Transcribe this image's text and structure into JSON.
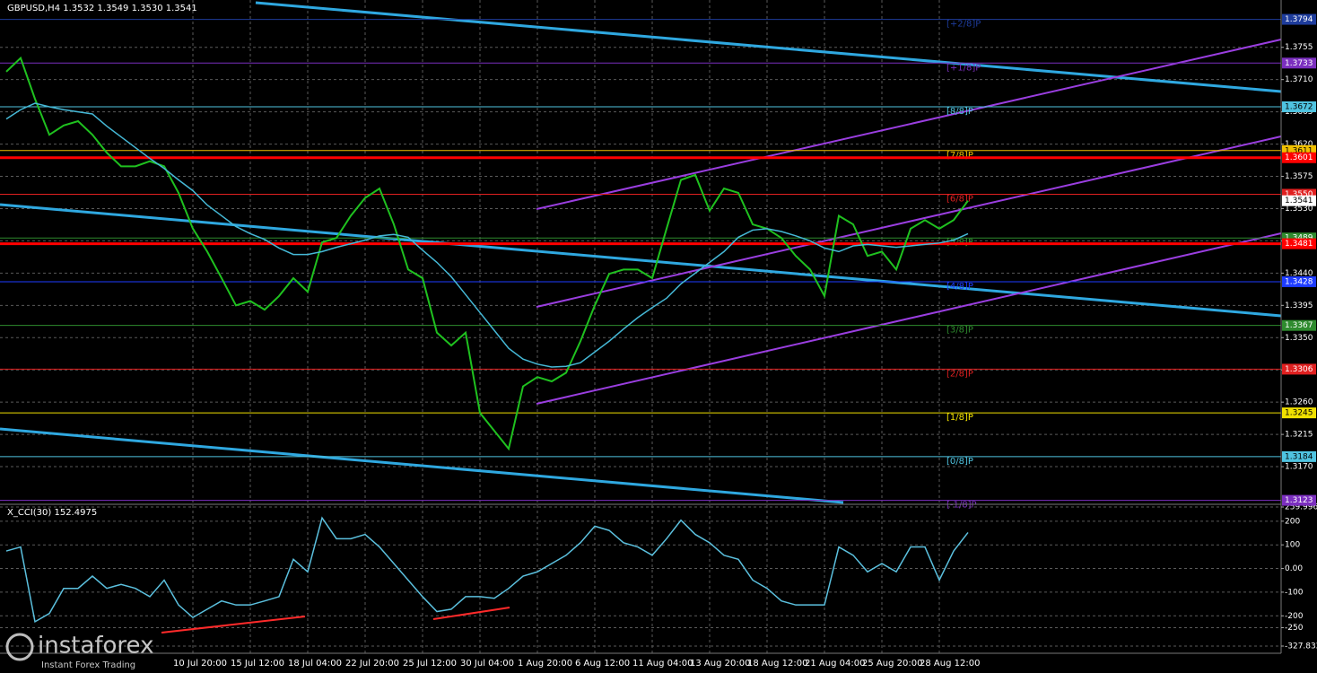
{
  "chart_data": [
    {
      "type": "line",
      "title": "GBPUSD,H4  1.3532 1.3549 1.3530 1.3541",
      "categories": [
        null,
        null,
        null,
        null,
        null,
        null,
        null,
        null,
        null,
        null,
        null,
        null,
        null,
        "10 Jul 20:00",
        null,
        null,
        null,
        "15 Jul 12:00",
        null,
        null,
        null,
        "18 Jul 04:00",
        null,
        null,
        null,
        "22 Jul 20:00",
        null,
        null,
        null,
        "25 Jul 12:00",
        null,
        null,
        null,
        "30 Jul 04:00",
        null,
        null,
        null,
        "1 Aug 20:00",
        null,
        null,
        null,
        "6 Aug 12:00",
        null,
        null,
        null,
        "11 Aug 04:00",
        null,
        null,
        null,
        "13 Aug 20:00",
        null,
        null,
        null,
        "18 Aug 12:00",
        null,
        null,
        null,
        "21 Aug 04:00",
        null,
        null,
        null,
        "25 Aug 20:00",
        null,
        null,
        null,
        "28 Aug 12:00",
        null,
        null
      ],
      "series": [
        {
          "color": "#1fc11f",
          "values": [
            1.3721,
            1.374,
            1.3683,
            1.3633,
            1.3646,
            1.3652,
            1.3633,
            1.3608,
            1.3589,
            1.3589,
            1.3596,
            1.3589,
            1.3552,
            1.3502,
            1.347,
            1.3433,
            1.3395,
            1.3401,
            1.3389,
            1.3408,
            1.3433,
            1.3414,
            1.3483,
            1.3489,
            1.352,
            1.3545,
            1.3558,
            1.3508,
            1.3445,
            1.3433,
            1.3357,
            1.3339,
            1.3357,
            1.3245,
            1.322,
            1.3195,
            1.3282,
            1.3295,
            1.3289,
            1.3301,
            1.3345,
            1.3395,
            1.3439,
            1.3445,
            1.3445,
            1.3433,
            1.3502,
            1.357,
            1.3577,
            1.3527,
            1.3558,
            1.3552,
            1.3508,
            1.3502,
            1.3489,
            1.3464,
            1.3445,
            1.3408,
            1.352,
            1.3508,
            1.3464,
            1.347,
            1.3445,
            1.3502,
            1.3514,
            1.3502,
            1.3514,
            1.3541
          ]
        },
        {
          "color": "#45b8d6",
          "values": [
            1.3655,
            1.3668,
            1.3677,
            1.3672,
            1.3668,
            1.3665,
            1.3662,
            1.3645,
            1.363,
            1.3615,
            1.36,
            1.3586,
            1.357,
            1.3555,
            1.3535,
            1.352,
            1.3505,
            1.3495,
            1.3487,
            1.3475,
            1.3466,
            1.3466,
            1.347,
            1.3476,
            1.3481,
            1.3486,
            1.3492,
            1.3494,
            1.349,
            1.3472,
            1.3455,
            1.3435,
            1.341,
            1.3385,
            1.336,
            1.3335,
            1.332,
            1.3313,
            1.3309,
            1.331,
            1.3315,
            1.333,
            1.3345,
            1.3362,
            1.3378,
            1.3392,
            1.3405,
            1.3425,
            1.344,
            1.3455,
            1.347,
            1.349,
            1.35,
            1.3502,
            1.3498,
            1.3492,
            1.3485,
            1.3475,
            1.347,
            1.3478,
            1.348,
            1.3478,
            1.3476,
            1.3478,
            1.348,
            1.3482,
            1.3486,
            1.3495
          ]
        }
      ],
      "ylim": [
        1.312,
        1.3821
      ],
      "yticks": [
        1.3755,
        {
          "value": 1.371,
          "label": "1.3710"
        },
        1.3665,
        {
          "value": 1.362,
          "label": "1.3620"
        },
        1.3575,
        {
          "value": 1.353,
          "label": "1.3530"
        },
        1.3485,
        {
          "value": 1.344,
          "label": "1.3440"
        },
        1.3395,
        {
          "value": 1.335,
          "label": "1.3350"
        },
        1.3305,
        {
          "value": 1.326,
          "label": "1.3260"
        },
        1.3215,
        {
          "value": 1.317,
          "label": "1.3170"
        }
      ],
      "grid": true,
      "levels": [
        {
          "name": "[+2/8]P",
          "value": 1.3794,
          "color": "#1e3c9c"
        },
        {
          "name": "[+1/8]P",
          "value": 1.3733,
          "color": "#7b2fbf"
        },
        {
          "name": "[8/8]P",
          "value": 1.3672,
          "color": "#4fc3e0"
        },
        {
          "name": "[7/8]P",
          "value": 1.3611,
          "color": "#f0c000"
        },
        {
          "name": "[6/8]P",
          "value": {
            "value": 1.355,
            "label": "1.3550"
          },
          "color": "#e02020"
        },
        {
          "name": "[5/8]P",
          "value": 1.3489,
          "color": "#2e8b2e"
        },
        {
          "name": "[4/8]P",
          "value": 1.3428,
          "color": "#1e3cff"
        },
        {
          "name": "[3/8]P",
          "value": 1.3367,
          "color": "#2e8b2e"
        },
        {
          "name": "[2/8]P",
          "value": 1.3306,
          "color": "#e02020"
        },
        {
          "name": "[1/8]P",
          "value": 1.3245,
          "color": "#f0e000"
        },
        {
          "name": "[0/8]P",
          "value": 1.3184,
          "color": "#4fc3e0"
        },
        {
          "name": "[-1/8]P",
          "value": 1.3123,
          "color": "#7b2fbf"
        }
      ],
      "support_lines": {
        "color": "#ff0000",
        "values": [
          1.3601,
          1.3481
        ]
      },
      "last_price": 1.3541
    },
    {
      "type": "line",
      "title": "X_CCI(30) 152.4975",
      "series": [
        {
          "color": "#5bc0de",
          "values": [
            74,
            91,
            -225,
            -190,
            -84,
            -84,
            -32,
            -84,
            -67,
            -84,
            -119,
            -49,
            -154,
            -207,
            -172,
            -137,
            -154,
            -154,
            -137,
            -119,
            39,
            -14,
            214,
            126,
            126,
            144,
            91,
            21,
            -49,
            -119,
            -182,
            -172,
            -119,
            -119,
            -126,
            -84,
            -32,
            -14,
            21,
            56,
            109,
            179,
            161,
            109,
            91,
            56,
            126,
            204,
            144,
            109,
            56,
            39,
            -49,
            -84,
            -137,
            -154,
            -154,
            -154,
            91,
            56,
            -14,
            21,
            -14,
            91,
            91,
            -49,
            74,
            152
          ]
        }
      ],
      "ylim": [
        -327.832,
        259.9969
      ],
      "yticks": [
        259.9969,
        200,
        100,
        {
          "value": 0,
          "label": "0.00"
        },
        -100,
        -200,
        -250,
        -327.832
      ],
      "grid": true
    }
  ],
  "watermark": {
    "brand": "instaforex",
    "tagline": "Instant Forex Trading"
  }
}
